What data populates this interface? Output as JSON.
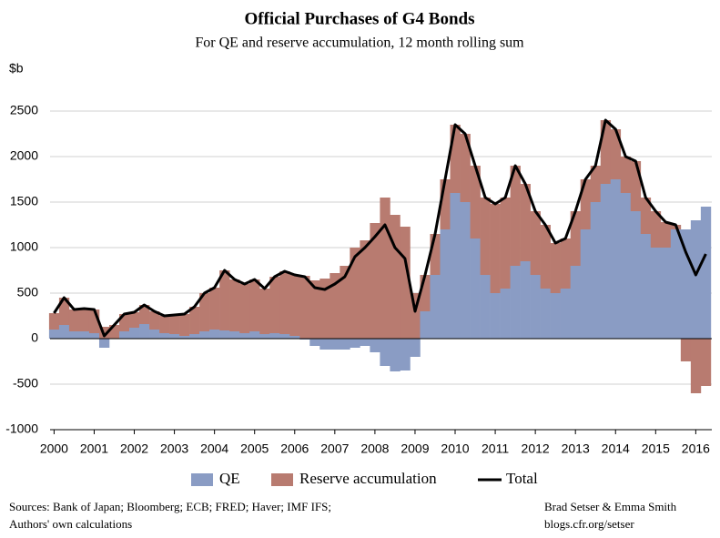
{
  "chart_data": {
    "type": "bar",
    "stacked": true,
    "title": "Official Purchases of G4 Bonds",
    "subtitle": "For QE and reserve accumulation, 12 month rolling sum",
    "y_label": "$b",
    "sources": [
      "Sources: Bank of Japan; Bloomberg; ECB; FRED; Haver; IMF IFS;",
      "Authors' own calculations"
    ],
    "credit": [
      "Brad Setser & Emma Smith",
      "blogs.cfr.org/setser"
    ],
    "x": [
      2000,
      2000.25,
      2000.5,
      2000.75,
      2001,
      2001.25,
      2001.5,
      2001.75,
      2002,
      2002.25,
      2002.5,
      2002.75,
      2003,
      2003.25,
      2003.5,
      2003.75,
      2004,
      2004.25,
      2004.5,
      2004.75,
      2005,
      2005.25,
      2005.5,
      2005.75,
      2006,
      2006.25,
      2006.5,
      2006.75,
      2007,
      2007.25,
      2007.5,
      2007.75,
      2008,
      2008.25,
      2008.5,
      2008.75,
      2009,
      2009.25,
      2009.5,
      2009.75,
      2010,
      2010.25,
      2010.5,
      2010.75,
      2011,
      2011.25,
      2011.5,
      2011.75,
      2012,
      2012.25,
      2012.5,
      2012.75,
      2013,
      2013.25,
      2013.5,
      2013.75,
      2014,
      2014.25,
      2014.5,
      2014.75,
      2015,
      2015.25,
      2015.5,
      2015.75,
      2016,
      2016.25
    ],
    "xlim": [
      1999.9,
      2016.4
    ],
    "xticks": [
      2000,
      2001,
      2002,
      2003,
      2004,
      2005,
      2006,
      2007,
      2008,
      2009,
      2010,
      2011,
      2012,
      2013,
      2014,
      2015,
      2016
    ],
    "ylim": [
      -1000,
      2500
    ],
    "yticks": [
      -1000,
      -500,
      0,
      500,
      1000,
      1500,
      2000,
      2500
    ],
    "grid": true,
    "series": [
      {
        "name": "QE",
        "color": "#8a9cc4",
        "values": [
          100,
          150,
          80,
          80,
          60,
          -100,
          0,
          80,
          120,
          160,
          100,
          60,
          50,
          30,
          50,
          80,
          100,
          90,
          80,
          60,
          80,
          50,
          60,
          50,
          30,
          -10,
          -80,
          -120,
          -120,
          -120,
          -100,
          -80,
          -150,
          -300,
          -360,
          -350,
          -200,
          300,
          700,
          1200,
          1600,
          1500,
          1100,
          700,
          500,
          550,
          800,
          850,
          700,
          550,
          500,
          550,
          800,
          1200,
          1500,
          1700,
          1750,
          1600,
          1400,
          1150,
          1000,
          1000,
          1200,
          1200,
          1300,
          1450
        ]
      },
      {
        "name": "Reserve accumulation",
        "color": "#b87b70",
        "values": [
          180,
          300,
          240,
          250,
          260,
          130,
          150,
          190,
          170,
          210,
          200,
          190,
          210,
          240,
          300,
          420,
          460,
          660,
          570,
          540,
          570,
          500,
          620,
          690,
          670,
          690,
          640,
          660,
          720,
          800,
          1000,
          1080,
          1270,
          1550,
          1360,
          1230,
          500,
          400,
          450,
          550,
          750,
          750,
          800,
          850,
          980,
          1000,
          1100,
          850,
          700,
          700,
          550,
          550,
          600,
          550,
          400,
          700,
          550,
          400,
          550,
          400,
          400,
          280,
          50,
          -250,
          -600,
          -520
        ]
      },
      {
        "name": "Total",
        "type": "line",
        "color": "#000000",
        "values": [
          280,
          450,
          320,
          330,
          320,
          30,
          150,
          270,
          290,
          370,
          300,
          250,
          260,
          270,
          350,
          500,
          560,
          750,
          650,
          600,
          650,
          550,
          680,
          740,
          700,
          680,
          560,
          540,
          600,
          680,
          900,
          1000,
          1120,
          1250,
          1000,
          880,
          300,
          700,
          1150,
          1750,
          2350,
          2250,
          1900,
          1550,
          1480,
          1550,
          1900,
          1700,
          1400,
          1250,
          1050,
          1100,
          1400,
          1750,
          1900,
          2400,
          2300,
          2000,
          1950,
          1550,
          1400,
          1280,
          1250,
          950,
          700,
          930
        ]
      }
    ]
  }
}
